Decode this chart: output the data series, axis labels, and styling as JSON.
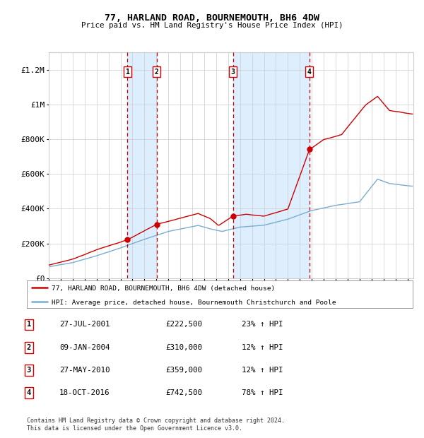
{
  "title": "77, HARLAND ROAD, BOURNEMOUTH, BH6 4DW",
  "subtitle": "Price paid vs. HM Land Registry's House Price Index (HPI)",
  "xlim_start": 1995.0,
  "xlim_end": 2025.5,
  "ylim": [
    0,
    1300000
  ],
  "yticks": [
    0,
    200000,
    400000,
    600000,
    800000,
    1000000,
    1200000
  ],
  "ytick_labels": [
    "£0",
    "£200K",
    "£400K",
    "£600K",
    "£800K",
    "£1M",
    "£1.2M"
  ],
  "sale_dates": [
    2001.58,
    2004.03,
    2010.41,
    2016.8
  ],
  "sale_prices": [
    222500,
    310000,
    359000,
    742500
  ],
  "sale_labels": [
    "1",
    "2",
    "3",
    "4"
  ],
  "sale_pct": [
    "23%",
    "12%",
    "12%",
    "78%"
  ],
  "sale_date_labels": [
    "27-JUL-2001",
    "09-JAN-2004",
    "27-MAY-2010",
    "18-OCT-2016"
  ],
  "sale_price_labels": [
    "£222,500",
    "£310,000",
    "£359,000",
    "£742,500"
  ],
  "red_line_color": "#cc0000",
  "blue_line_color": "#7aadcf",
  "shade_color": "#ddeeff",
  "legend_label_red": "77, HARLAND ROAD, BOURNEMOUTH, BH6 4DW (detached house)",
  "legend_label_blue": "HPI: Average price, detached house, Bournemouth Christchurch and Poole",
  "footer1": "Contains HM Land Registry data © Crown copyright and database right 2024.",
  "footer2": "This data is licensed under the Open Government Licence v3.0.",
  "bg_color": "#ffffff",
  "plot_bg_color": "#ffffff",
  "grid_color": "#cccccc"
}
